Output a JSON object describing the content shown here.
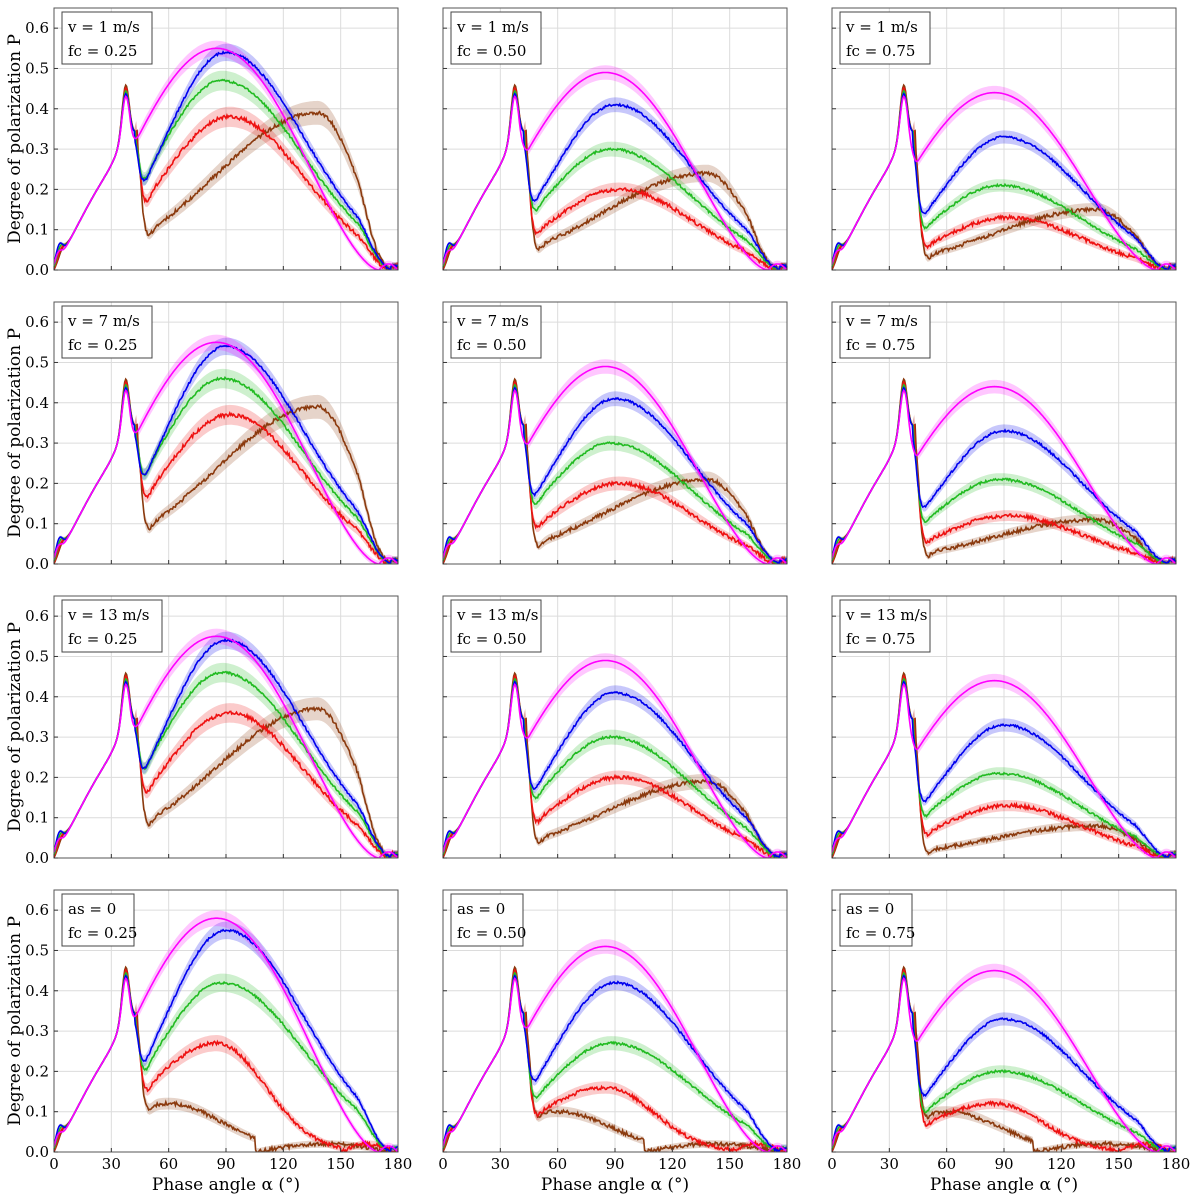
{
  "chart_data": {
    "type": "line",
    "ylabel": "Degree of polarization P",
    "xlabel": "Phase angle α (°)",
    "xlim": [
      0,
      180
    ],
    "ylim": [
      0,
      0.65
    ],
    "xticks": [
      "0",
      "30",
      "60",
      "90",
      "120",
      "150",
      "180"
    ],
    "yticks": [
      "0.0",
      "0.1",
      "0.2",
      "0.3",
      "0.4",
      "0.5",
      "0.6"
    ],
    "grid": true,
    "series_colors": [
      "#ff00ff",
      "#0000ee",
      "#22bb22",
      "#ee1111",
      "#8b3a0e"
    ],
    "rows": [
      {
        "label1": "v = 1 m/s",
        "panels": [
          {
            "label2": "fc = 0.25",
            "peaks": [
              0.55,
              0.54,
              0.47,
              0.38,
              0.39
            ],
            "tail": [
              0.0,
              0.01,
              0.02,
              0.02,
              0.03
            ]
          },
          {
            "label2": "fc = 0.50",
            "peaks": [
              0.49,
              0.41,
              0.3,
              0.2,
              0.24
            ],
            "tail": [
              0.0,
              0.01,
              0.02,
              0.02,
              0.03
            ]
          },
          {
            "label2": "fc = 0.75",
            "peaks": [
              0.44,
              0.33,
              0.21,
              0.13,
              0.15
            ],
            "tail": [
              0.0,
              0.01,
              0.02,
              0.02,
              0.03
            ]
          }
        ]
      },
      {
        "label1": "v = 7 m/s",
        "panels": [
          {
            "label2": "fc = 0.25",
            "peaks": [
              0.55,
              0.54,
              0.46,
              0.37,
              0.39
            ],
            "tail": [
              0.0,
              0.01,
              0.02,
              0.02,
              0.03
            ]
          },
          {
            "label2": "fc = 0.50",
            "peaks": [
              0.49,
              0.41,
              0.3,
              0.2,
              0.21
            ],
            "tail": [
              0.0,
              0.01,
              0.02,
              0.02,
              0.03
            ]
          },
          {
            "label2": "fc = 0.75",
            "peaks": [
              0.44,
              0.33,
              0.21,
              0.12,
              0.11
            ],
            "tail": [
              0.0,
              0.01,
              0.02,
              0.02,
              0.03
            ]
          }
        ]
      },
      {
        "label1": "v = 13 m/s",
        "panels": [
          {
            "label2": "fc = 0.25",
            "peaks": [
              0.55,
              0.54,
              0.46,
              0.36,
              0.37
            ],
            "tail": [
              0.0,
              0.01,
              0.02,
              0.02,
              0.03
            ]
          },
          {
            "label2": "fc = 0.50",
            "peaks": [
              0.49,
              0.41,
              0.3,
              0.2,
              0.19
            ],
            "tail": [
              0.0,
              0.01,
              0.02,
              0.02,
              0.03
            ]
          },
          {
            "label2": "fc = 0.75",
            "peaks": [
              0.44,
              0.33,
              0.21,
              0.13,
              0.08
            ],
            "tail": [
              0.0,
              0.01,
              0.02,
              0.02,
              0.03
            ]
          }
        ]
      },
      {
        "label1": "as = 0",
        "panels": [
          {
            "label2": "fc = 0.25",
            "peaks": [
              0.58,
              0.55,
              0.42,
              0.27,
              0.12
            ],
            "tail": [
              0.0,
              0.01,
              0.02,
              0.02,
              0.03
            ]
          },
          {
            "label2": "fc = 0.50",
            "peaks": [
              0.51,
              0.42,
              0.27,
              0.16,
              0.1
            ],
            "tail": [
              0.0,
              0.01,
              0.02,
              0.02,
              0.03
            ]
          },
          {
            "label2": "fc = 0.75",
            "peaks": [
              0.45,
              0.33,
              0.2,
              0.12,
              0.1
            ],
            "tail": [
              0.0,
              0.01,
              0.02,
              0.02,
              0.03
            ]
          }
        ]
      }
    ]
  }
}
